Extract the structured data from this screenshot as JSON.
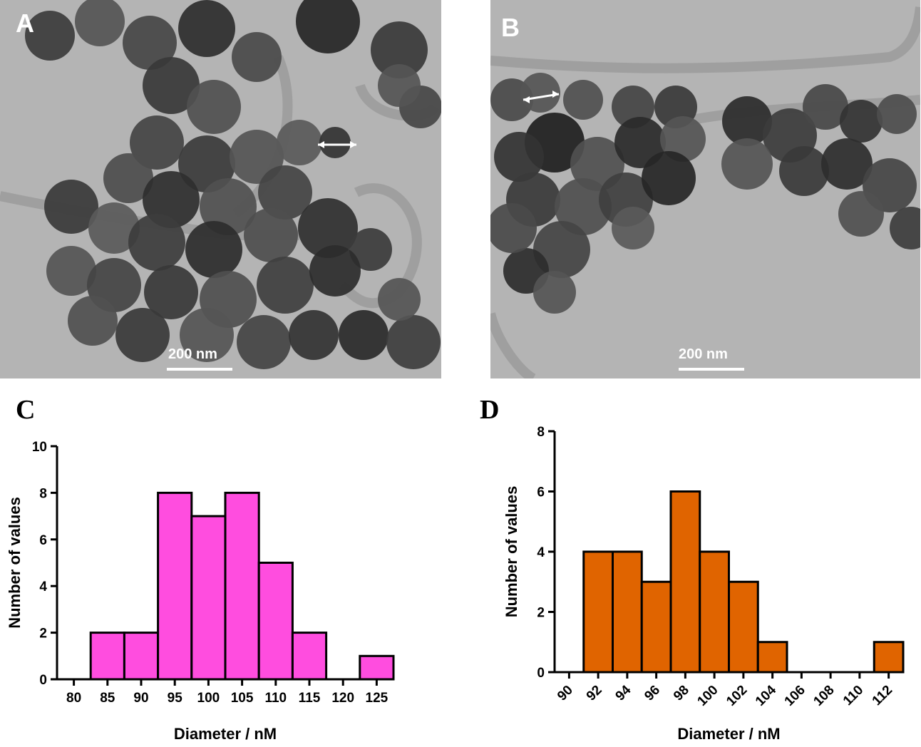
{
  "panels": {
    "a": {
      "letter": "A",
      "scale_label": "200 nm"
    },
    "b": {
      "letter": "B",
      "scale_label": "200 nm"
    },
    "c": {
      "letter": "C"
    },
    "d": {
      "letter": "D"
    }
  },
  "chart_data": [
    {
      "panel": "C",
      "type": "bar",
      "categories": [
        "80",
        "85",
        "90",
        "95",
        "100",
        "105",
        "110",
        "115",
        "120",
        "125"
      ],
      "values": [
        0,
        2,
        2,
        8,
        7,
        8,
        5,
        2,
        0,
        1
      ],
      "xlabel": "Diameter / nM",
      "ylabel": "Number of values",
      "ylim": [
        0,
        10
      ],
      "yticks": [
        0,
        2,
        4,
        6,
        8,
        10
      ],
      "bar_color": "#ff4ddf",
      "tick_rotation": 0
    },
    {
      "panel": "D",
      "type": "bar",
      "categories": [
        "90",
        "92",
        "94",
        "96",
        "98",
        "100",
        "102",
        "104",
        "106",
        "108",
        "110",
        "112"
      ],
      "values": [
        0,
        4,
        4,
        3,
        6,
        4,
        3,
        1,
        0,
        0,
        0,
        1
      ],
      "xlabel": "Diameter / nM",
      "ylabel": "Number of values",
      "ylim": [
        0,
        8
      ],
      "yticks": [
        0,
        2,
        4,
        6,
        8
      ],
      "bar_color": "#e06400",
      "tick_rotation": -45
    }
  ]
}
